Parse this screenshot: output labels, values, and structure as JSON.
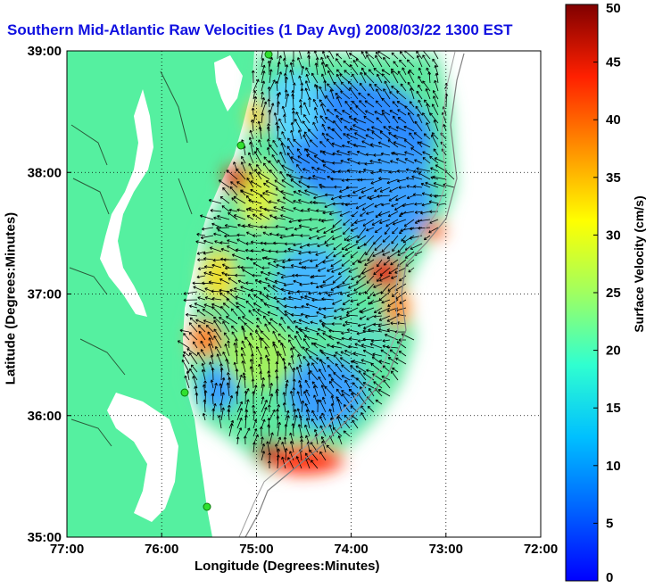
{
  "title": "Southern Mid-Atlantic Raw Velocities (1 Day Avg) 2008/03/22 1300 EST",
  "chart_data": {
    "type": "heatmap",
    "subtype": "current-velocity-map",
    "xlabel": "Longitude (Degrees:Minutes)",
    "ylabel": "Latitude (Degrees:Minutes)",
    "x_ticks": [
      "77:00",
      "76:00",
      "75:00",
      "74:00",
      "73:00",
      "72:00"
    ],
    "y_ticks": [
      "39:00",
      "38:00",
      "37:00",
      "36:00",
      "35:00"
    ],
    "xlim": [
      -77,
      -72
    ],
    "ylim": [
      35,
      39
    ],
    "grid": true,
    "colorbar": {
      "label": "Surface Velocity (cm/s)",
      "ticks": [
        "50",
        "45",
        "40",
        "35",
        "30",
        "25",
        "20",
        "15",
        "10",
        "5",
        "0"
      ],
      "range": [
        0,
        50
      ],
      "colormap": "jet"
    },
    "land_color": "#55f0a0",
    "arrow_color": "#000000",
    "station_color": "#30e030"
  }
}
